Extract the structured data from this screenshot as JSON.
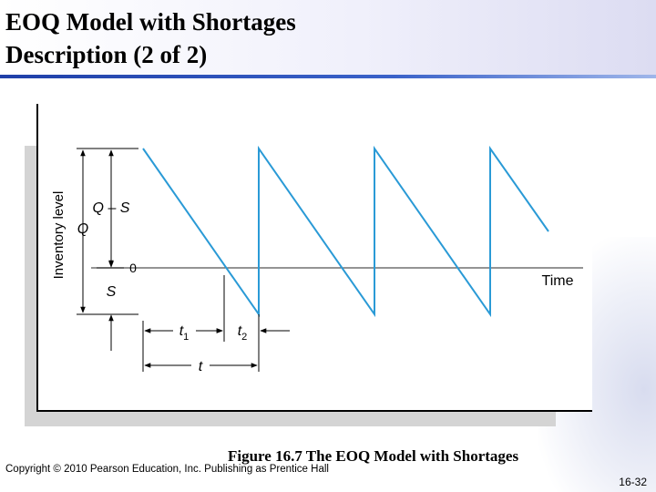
{
  "slide": {
    "title_line1": "EOQ Model with Shortages",
    "title_line2": "Description (2 of 2)",
    "caption": "Figure 16.7  The EOQ Model with Shortages",
    "copyright": "Copyright © 2010 Pearson Education, Inc. Publishing as Prentice Hall",
    "slide_number": "16-32"
  },
  "diagram": {
    "y_axis_label": "Inventory level",
    "x_axis_label": "Time",
    "labels": {
      "q": "Q",
      "q_minus_s": "Q – S",
      "zero": "0",
      "s": "S",
      "t1": "t",
      "t1_sub": "1",
      "t2": "t",
      "t2_sub": "2",
      "t": "t"
    },
    "colors": {
      "sawtooth": "#2a9ad6",
      "axes": "#000000",
      "zero_line": "#555555"
    },
    "cycles_shown": 4
  }
}
